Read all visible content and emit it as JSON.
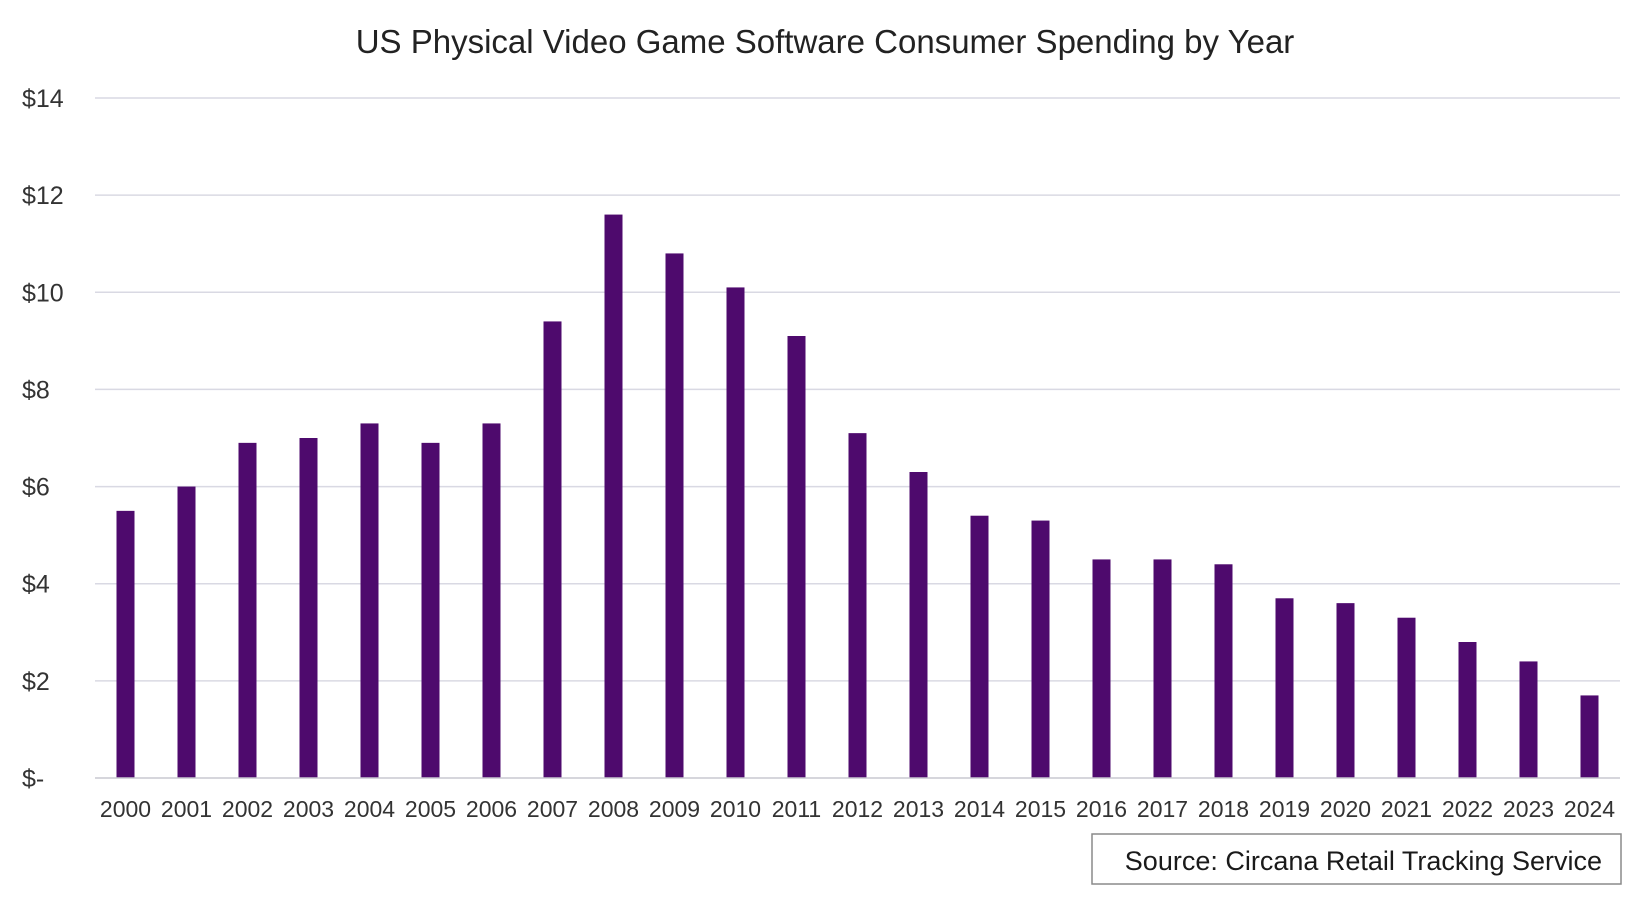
{
  "chart_data": {
    "type": "bar",
    "title": "US Physical Video Game Software Consumer Spending by Year",
    "xlabel": "",
    "ylabel": "",
    "categories": [
      "2000",
      "2001",
      "2002",
      "2003",
      "2004",
      "2005",
      "2006",
      "2007",
      "2008",
      "2009",
      "2010",
      "2011",
      "2012",
      "2013",
      "2014",
      "2015",
      "2016",
      "2017",
      "2018",
      "2019",
      "2020",
      "2021",
      "2022",
      "2023",
      "2024"
    ],
    "values": [
      5.5,
      6.0,
      6.9,
      7.0,
      7.3,
      6.9,
      7.3,
      9.4,
      11.6,
      10.8,
      10.1,
      9.1,
      7.1,
      6.3,
      5.4,
      5.3,
      4.5,
      4.5,
      4.4,
      3.7,
      3.6,
      3.3,
      2.8,
      2.4,
      1.7
    ],
    "ylim": [
      0,
      14
    ],
    "yticks": [
      0,
      2,
      4,
      6,
      8,
      10,
      12,
      14
    ],
    "ytick_labels": [
      "$-",
      "$2",
      "$4",
      "$6",
      "$8",
      "$10",
      "$12",
      "$14"
    ],
    "grid": true,
    "legend": "none",
    "bar_color": "#4e0a6d",
    "grid_color": "#d9d9e3",
    "source_note": "Source: Circana Retail Tracking Service"
  }
}
